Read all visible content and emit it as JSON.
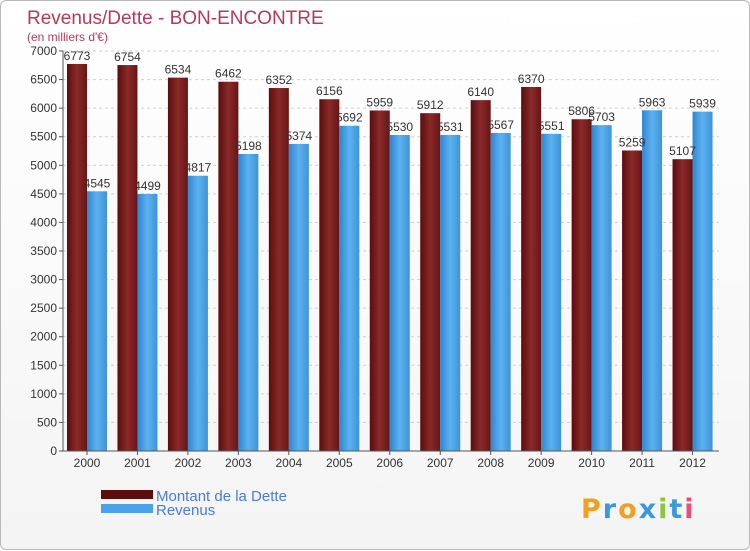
{
  "chart_data": {
    "type": "bar",
    "title": "Revenus/Dette - BON-ENCONTRE",
    "subtitle": "(en milliers d'€)",
    "categories": [
      "2000",
      "2001",
      "2002",
      "2003",
      "2004",
      "2005",
      "2006",
      "2007",
      "2008",
      "2009",
      "2010",
      "2011",
      "2012"
    ],
    "series": [
      {
        "name": "Montant de la Dette",
        "color": "#7a1c1c",
        "values": [
          6773,
          6754,
          6534,
          6462,
          6352,
          6156,
          5959,
          5912,
          6140,
          6370,
          5806,
          5259,
          5107
        ]
      },
      {
        "name": "Revenus",
        "color": "#4aa3e8",
        "values": [
          4545,
          4499,
          4817,
          5198,
          5374,
          5692,
          5530,
          5531,
          5567,
          5551,
          5703,
          5963,
          5939
        ]
      }
    ],
    "ylim": [
      0,
      7000
    ],
    "yticks": [
      "0",
      "500",
      "1000",
      "1500",
      "2000",
      "2500",
      "3000",
      "3500",
      "4000",
      "4500",
      "5000",
      "5500",
      "6000",
      "6500",
      "7000"
    ],
    "grid": true,
    "legend_position": "bottom-left"
  },
  "logo": {
    "text": "Proxiti"
  }
}
